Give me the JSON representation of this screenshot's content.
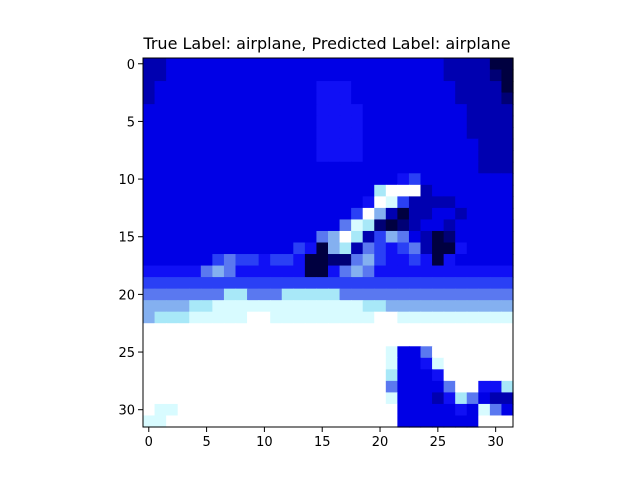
{
  "chart_data": {
    "type": "heatmap",
    "title": "True Label: airplane, Predicted Label: airplane",
    "xlabel": "",
    "ylabel": "",
    "xlim": [
      -0.5,
      31.5
    ],
    "ylim": [
      31.5,
      -0.5
    ],
    "x_ticks": [
      0,
      5,
      10,
      15,
      20,
      25,
      30
    ],
    "y_ticks": [
      0,
      5,
      10,
      15,
      20,
      25,
      30
    ],
    "grid": false,
    "image_size": [
      32,
      32
    ],
    "palette": [
      "#000040",
      "#000075",
      "#0000b0",
      "#0000e6",
      "#1010f5",
      "#2a40f5",
      "#5a78f0",
      "#84b0f0",
      "#a8e8f8",
      "#d8fbff",
      "#ffffff"
    ],
    "rows": [
      "33333333333333333333333333222211",
      "33333333333333333333333333222211",
      "33333333333333344433333333322221",
      "33333333333333344433333333322221",
      "33333333333333344443333333332222",
      "33333333333333344443333333332222",
      "33333333333333344443333333332222",
      "33333333333333344443333333333222",
      "33333333333333344443333333333222",
      "33333333333333333333333333333222",
      "33333333333333333333333333333333",
      "33333333333333333333333333333333",
      "33333333333333333333333333333333",
      "33333333333333333333333333333333",
      "33333333333333333333333333333333",
      "33333333333333333333333333333333",
      "33333333333333333333333333333333",
      "33333333333333333333333333333333",
      "44444444444444444444444444444444",
      "55555555555555555555555555555555",
      "66666666666666666666666666666666",
      "77777777777777777777777777777777",
      "99999999999999999999999999999999",
      "aaaaaaaaaaaaaaaaaaaaaaaaaaaaaaaa",
      "aaaaaaaaaaaaaaaaaaaaaaaaaaaaaaaa",
      "aaaaaaaaaaaaaaaaaaaaaaaaaaaaaaaa",
      "aaaaaaaaaaaaaaaaaaaaaaaaaaaaaaaa",
      "aaaaaaaaaaaaaaaaaaaaaaaaaaaaaaaa",
      "aaaaaaaaaaaaaaaaaaaaaaaaaaaaaaaa",
      "aaaaaaaaaaaaaaaaaaaaaaaaaaaaaaaa",
      "aaaaaaaaaaaaaaaaaaaaaaaaaaaaaaaa",
      "aaaaaaaaaaaaaaaaaaaaaaaaaaaaaaaa"
    ],
    "overrides": [
      {
        "r": 0,
        "c": 0,
        "v": 2
      },
      {
        "r": 0,
        "c": 1,
        "v": 2
      },
      {
        "r": 1,
        "c": 0,
        "v": 2
      },
      {
        "r": 1,
        "c": 1,
        "v": 2
      },
      {
        "r": 2,
        "c": 0,
        "v": 2
      },
      {
        "r": 3,
        "c": 0,
        "v": 2
      },
      {
        "r": 0,
        "c": 30,
        "v": 0
      },
      {
        "r": 0,
        "c": 31,
        "v": 0
      },
      {
        "r": 1,
        "c": 31,
        "v": 0
      },
      {
        "r": 2,
        "c": 31,
        "v": 0
      },
      {
        "r": 10,
        "c": 22,
        "v": 4
      },
      {
        "r": 10,
        "c": 23,
        "v": 5
      },
      {
        "r": 11,
        "c": 20,
        "v": 8
      },
      {
        "r": 11,
        "c": 21,
        "v": 10
      },
      {
        "r": 11,
        "c": 22,
        "v": 10
      },
      {
        "r": 11,
        "c": 23,
        "v": 10
      },
      {
        "r": 11,
        "c": 24,
        "v": 2
      },
      {
        "r": 12,
        "c": 19,
        "v": 4
      },
      {
        "r": 12,
        "c": 20,
        "v": 10
      },
      {
        "r": 12,
        "c": 21,
        "v": 9
      },
      {
        "r": 12,
        "c": 22,
        "v": 5
      },
      {
        "r": 12,
        "c": 23,
        "v": 2
      },
      {
        "r": 12,
        "c": 24,
        "v": 2
      },
      {
        "r": 12,
        "c": 25,
        "v": 2
      },
      {
        "r": 12,
        "c": 26,
        "v": 2
      },
      {
        "r": 13,
        "c": 18,
        "v": 5
      },
      {
        "r": 13,
        "c": 19,
        "v": 10
      },
      {
        "r": 13,
        "c": 20,
        "v": 7
      },
      {
        "r": 13,
        "c": 21,
        "v": 2
      },
      {
        "r": 13,
        "c": 22,
        "v": 0
      },
      {
        "r": 13,
        "c": 23,
        "v": 2
      },
      {
        "r": 13,
        "c": 24,
        "v": 2
      },
      {
        "r": 13,
        "c": 25,
        "v": 3
      },
      {
        "r": 13,
        "c": 27,
        "v": 2
      },
      {
        "r": 14,
        "c": 17,
        "v": 6
      },
      {
        "r": 14,
        "c": 18,
        "v": 9
      },
      {
        "r": 14,
        "c": 19,
        "v": 8
      },
      {
        "r": 14,
        "c": 20,
        "v": 1
      },
      {
        "r": 14,
        "c": 21,
        "v": 0
      },
      {
        "r": 14,
        "c": 22,
        "v": 1
      },
      {
        "r": 14,
        "c": 23,
        "v": 2
      },
      {
        "r": 14,
        "c": 24,
        "v": 3
      },
      {
        "r": 14,
        "c": 25,
        "v": 3
      },
      {
        "r": 14,
        "c": 26,
        "v": 2
      },
      {
        "r": 15,
        "c": 15,
        "v": 6
      },
      {
        "r": 15,
        "c": 16,
        "v": 7
      },
      {
        "r": 15,
        "c": 17,
        "v": 10
      },
      {
        "r": 15,
        "c": 18,
        "v": 8
      },
      {
        "r": 15,
        "c": 19,
        "v": 2
      },
      {
        "r": 15,
        "c": 20,
        "v": 5
      },
      {
        "r": 15,
        "c": 21,
        "v": 7
      },
      {
        "r": 15,
        "c": 22,
        "v": 6
      },
      {
        "r": 15,
        "c": 23,
        "v": 3
      },
      {
        "r": 15,
        "c": 24,
        "v": 2
      },
      {
        "r": 15,
        "c": 25,
        "v": 0
      },
      {
        "r": 15,
        "c": 26,
        "v": 1
      },
      {
        "r": 16,
        "c": 13,
        "v": 5
      },
      {
        "r": 16,
        "c": 14,
        "v": 4
      },
      {
        "r": 16,
        "c": 15,
        "v": 0
      },
      {
        "r": 16,
        "c": 16,
        "v": 7
      },
      {
        "r": 16,
        "c": 17,
        "v": 8
      },
      {
        "r": 16,
        "c": 18,
        "v": 2
      },
      {
        "r": 16,
        "c": 19,
        "v": 6
      },
      {
        "r": 16,
        "c": 20,
        "v": 5
      },
      {
        "r": 16,
        "c": 21,
        "v": 4
      },
      {
        "r": 16,
        "c": 22,
        "v": 5
      },
      {
        "r": 16,
        "c": 23,
        "v": 6
      },
      {
        "r": 16,
        "c": 24,
        "v": 2
      },
      {
        "r": 16,
        "c": 25,
        "v": 0
      },
      {
        "r": 16,
        "c": 26,
        "v": 0
      },
      {
        "r": 16,
        "c": 27,
        "v": 4
      },
      {
        "r": 17,
        "c": 6,
        "v": 5
      },
      {
        "r": 17,
        "c": 7,
        "v": 6
      },
      {
        "r": 17,
        "c": 8,
        "v": 5
      },
      {
        "r": 17,
        "c": 9,
        "v": 5
      },
      {
        "r": 17,
        "c": 10,
        "v": 4
      },
      {
        "r": 17,
        "c": 11,
        "v": 5
      },
      {
        "r": 17,
        "c": 12,
        "v": 5
      },
      {
        "r": 17,
        "c": 13,
        "v": 4
      },
      {
        "r": 17,
        "c": 14,
        "v": 0
      },
      {
        "r": 17,
        "c": 15,
        "v": 0
      },
      {
        "r": 17,
        "c": 16,
        "v": 1
      },
      {
        "r": 17,
        "c": 17,
        "v": 1
      },
      {
        "r": 17,
        "c": 18,
        "v": 6
      },
      {
        "r": 17,
        "c": 19,
        "v": 7
      },
      {
        "r": 17,
        "c": 20,
        "v": 5
      },
      {
        "r": 17,
        "c": 21,
        "v": 4
      },
      {
        "r": 17,
        "c": 22,
        "v": 4
      },
      {
        "r": 17,
        "c": 23,
        "v": 5
      },
      {
        "r": 17,
        "c": 24,
        "v": 4
      },
      {
        "r": 17,
        "c": 25,
        "v": 0
      },
      {
        "r": 17,
        "c": 26,
        "v": 4
      },
      {
        "r": 17,
        "c": 27,
        "v": 3
      },
      {
        "r": 18,
        "c": 5,
        "v": 6
      },
      {
        "r": 18,
        "c": 6,
        "v": 7
      },
      {
        "r": 18,
        "c": 7,
        "v": 6
      },
      {
        "r": 18,
        "c": 14,
        "v": 0
      },
      {
        "r": 18,
        "c": 15,
        "v": 0
      },
      {
        "r": 18,
        "c": 17,
        "v": 6
      },
      {
        "r": 18,
        "c": 18,
        "v": 7
      },
      {
        "r": 18,
        "c": 19,
        "v": 6
      },
      {
        "r": 20,
        "c": 7,
        "v": 8
      },
      {
        "r": 20,
        "c": 8,
        "v": 8
      },
      {
        "r": 20,
        "c": 12,
        "v": 8
      },
      {
        "r": 20,
        "c": 13,
        "v": 8
      },
      {
        "r": 20,
        "c": 14,
        "v": 8
      },
      {
        "r": 20,
        "c": 15,
        "v": 8
      },
      {
        "r": 20,
        "c": 16,
        "v": 8
      },
      {
        "r": 21,
        "c": 4,
        "v": 8
      },
      {
        "r": 21,
        "c": 5,
        "v": 8
      },
      {
        "r": 21,
        "c": 6,
        "v": 9
      },
      {
        "r": 21,
        "c": 7,
        "v": 9
      },
      {
        "r": 21,
        "c": 8,
        "v": 9
      },
      {
        "r": 21,
        "c": 9,
        "v": 9
      },
      {
        "r": 21,
        "c": 10,
        "v": 9
      },
      {
        "r": 21,
        "c": 11,
        "v": 9
      },
      {
        "r": 21,
        "c": 12,
        "v": 9
      },
      {
        "r": 21,
        "c": 13,
        "v": 9
      },
      {
        "r": 21,
        "c": 14,
        "v": 9
      },
      {
        "r": 21,
        "c": 15,
        "v": 9
      },
      {
        "r": 21,
        "c": 16,
        "v": 9
      },
      {
        "r": 21,
        "c": 17,
        "v": 9
      },
      {
        "r": 21,
        "c": 18,
        "v": 9
      },
      {
        "r": 21,
        "c": 19,
        "v": 8
      },
      {
        "r": 21,
        "c": 20,
        "v": 8
      },
      {
        "r": 22,
        "c": 0,
        "v": 7
      },
      {
        "r": 22,
        "c": 1,
        "v": 8
      },
      {
        "r": 22,
        "c": 2,
        "v": 8
      },
      {
        "r": 22,
        "c": 3,
        "v": 8
      },
      {
        "r": 22,
        "c": 4,
        "v": 9
      },
      {
        "r": 22,
        "c": 5,
        "v": 9
      },
      {
        "r": 22,
        "c": 6,
        "v": 9
      },
      {
        "r": 22,
        "c": 7,
        "v": 9
      },
      {
        "r": 22,
        "c": 8,
        "v": 9
      },
      {
        "r": 22,
        "c": 9,
        "v": 10
      },
      {
        "r": 22,
        "c": 10,
        "v": 10
      },
      {
        "r": 22,
        "c": 20,
        "v": 10
      },
      {
        "r": 22,
        "c": 21,
        "v": 10
      },
      {
        "r": 22,
        "c": 30,
        "v": 9
      },
      {
        "r": 22,
        "c": 31,
        "v": 9
      },
      {
        "r": 25,
        "c": 21,
        "v": 9
      },
      {
        "r": 25,
        "c": 22,
        "v": 3
      },
      {
        "r": 25,
        "c": 23,
        "v": 3
      },
      {
        "r": 25,
        "c": 24,
        "v": 6
      },
      {
        "r": 26,
        "c": 21,
        "v": 9
      },
      {
        "r": 26,
        "c": 22,
        "v": 3
      },
      {
        "r": 26,
        "c": 23,
        "v": 3
      },
      {
        "r": 26,
        "c": 24,
        "v": 4
      },
      {
        "r": 26,
        "c": 25,
        "v": 9
      },
      {
        "r": 27,
        "c": 21,
        "v": 8
      },
      {
        "r": 27,
        "c": 22,
        "v": 3
      },
      {
        "r": 27,
        "c": 23,
        "v": 3
      },
      {
        "r": 27,
        "c": 24,
        "v": 3
      },
      {
        "r": 27,
        "c": 25,
        "v": 4
      },
      {
        "r": 28,
        "c": 21,
        "v": 6
      },
      {
        "r": 28,
        "c": 22,
        "v": 3
      },
      {
        "r": 28,
        "c": 23,
        "v": 3
      },
      {
        "r": 28,
        "c": 24,
        "v": 3
      },
      {
        "r": 28,
        "c": 25,
        "v": 3
      },
      {
        "r": 28,
        "c": 26,
        "v": 6
      },
      {
        "r": 28,
        "c": 29,
        "v": 4
      },
      {
        "r": 28,
        "c": 30,
        "v": 4
      },
      {
        "r": 28,
        "c": 31,
        "v": 8
      },
      {
        "r": 29,
        "c": 21,
        "v": 9
      },
      {
        "r": 29,
        "c": 22,
        "v": 3
      },
      {
        "r": 29,
        "c": 23,
        "v": 3
      },
      {
        "r": 29,
        "c": 24,
        "v": 3
      },
      {
        "r": 29,
        "c": 25,
        "v": 2
      },
      {
        "r": 29,
        "c": 26,
        "v": 4
      },
      {
        "r": 29,
        "c": 27,
        "v": 8
      },
      {
        "r": 29,
        "c": 28,
        "v": 6
      },
      {
        "r": 29,
        "c": 29,
        "v": 3
      },
      {
        "r": 29,
        "c": 30,
        "v": 2
      },
      {
        "r": 29,
        "c": 31,
        "v": 2
      },
      {
        "r": 30,
        "c": 1,
        "v": 9
      },
      {
        "r": 30,
        "c": 2,
        "v": 9
      },
      {
        "r": 30,
        "c": 22,
        "v": 3
      },
      {
        "r": 30,
        "c": 23,
        "v": 3
      },
      {
        "r": 30,
        "c": 24,
        "v": 3
      },
      {
        "r": 30,
        "c": 25,
        "v": 3
      },
      {
        "r": 30,
        "c": 26,
        "v": 3
      },
      {
        "r": 30,
        "c": 27,
        "v": 4
      },
      {
        "r": 30,
        "c": 28,
        "v": 3
      },
      {
        "r": 30,
        "c": 29,
        "v": 9
      },
      {
        "r": 30,
        "c": 30,
        "v": 6
      },
      {
        "r": 30,
        "c": 31,
        "v": 3
      },
      {
        "r": 31,
        "c": 0,
        "v": 9
      },
      {
        "r": 31,
        "c": 1,
        "v": 9
      },
      {
        "r": 31,
        "c": 22,
        "v": 3
      },
      {
        "r": 31,
        "c": 23,
        "v": 3
      },
      {
        "r": 31,
        "c": 24,
        "v": 3
      },
      {
        "r": 31,
        "c": 25,
        "v": 3
      },
      {
        "r": 31,
        "c": 26,
        "v": 3
      },
      {
        "r": 31,
        "c": 27,
        "v": 3
      },
      {
        "r": 31,
        "c": 28,
        "v": 3
      }
    ]
  }
}
